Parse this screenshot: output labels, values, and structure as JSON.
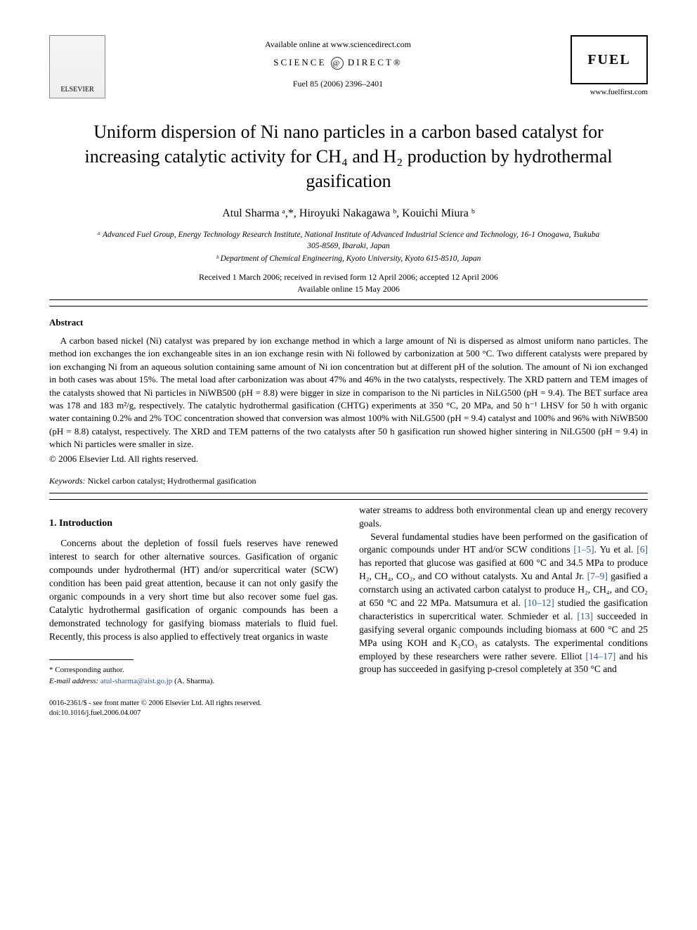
{
  "header": {
    "available_text": "Available online at www.sciencedirect.com",
    "sciencedirect_text_left": "SCIENCE",
    "sciencedirect_text_right": "DIRECT®",
    "journal_ref": "Fuel 85 (2006) 2396–2401",
    "journal_url": "www.fuelfirst.com",
    "elsevier_label": "ELSEVIER",
    "fuel_logo_text": "FUEL"
  },
  "title": "Uniform dispersion of Ni nano particles in a carbon based catalyst for increasing catalytic activity for CH₄ and H₂ production by hydrothermal gasification",
  "authors_line": "Atul Sharma ᵃ,*, Hiroyuki Nakagawa ᵇ, Kouichi Miura ᵇ",
  "affiliations": {
    "a": "ᵃ Advanced Fuel Group, Energy Technology Research Institute, National Institute of Advanced Industrial Science and Technology, 16-1 Onogawa, Tsukuba 305-8569, Ibaraki, Japan",
    "b": "ᵇ Department of Chemical Engineering, Kyoto University, Kyoto 615-8510, Japan"
  },
  "dates": {
    "line1": "Received 1 March 2006; received in revised form 12 April 2006; accepted 12 April 2006",
    "line2": "Available online 15 May 2006"
  },
  "abstract": {
    "heading": "Abstract",
    "body": "A carbon based nickel (Ni) catalyst was prepared by ion exchange method in which a large amount of Ni is dispersed as almost uniform nano particles. The method ion exchanges the ion exchangeable sites in an ion exchange resin with Ni followed by carbonization at 500 °C. Two different catalysts were prepared by ion exchanging Ni from an aqueous solution containing same amount of Ni ion concentration but at different pH of the solution. The amount of Ni ion exchanged in both cases was about 15%. The metal load after carbonization was about 47% and 46% in the two catalysts, respectively. The XRD pattern and TEM images of the catalysts showed that Ni particles in NiWB500 (pH = 8.8) were bigger in size in comparison to the Ni particles in NiLG500 (pH = 9.4). The BET surface area was 178 and 183 m²/g, respectively. The catalytic hydrothermal gasification (CHTG) experiments at 350 °C, 20 MPa, and 50 h⁻¹ LHSV for 50 h with organic water containing 0.2% and 2% TOC concentration showed that conversion was almost 100% with NiLG500 (pH = 9.4) catalyst and 100% and 96% with NiWB500 (pH = 8.8) catalyst, respectively. The XRD and TEM patterns of the two catalysts after 50 h gasification run showed higher sintering in NiLG500 (pH = 9.4) in which Ni particles were smaller in size.",
    "copyright": "© 2006 Elsevier Ltd. All rights reserved."
  },
  "keywords": {
    "label": "Keywords:",
    "text": "Nickel carbon catalyst; Hydrothermal gasification"
  },
  "section1": {
    "heading": "1. Introduction",
    "left_p1": "Concerns about the depletion of fossil fuels reserves have renewed interest to search for other alternative sources. Gasification of organic compounds under hydrothermal (HT) and/or supercritical water (SCW) condition has been paid great attention, because it can not only gasify the organic compounds in a very short time but also recover some fuel gas. Catalytic hydrothermal gasification of organic compounds has been a demonstrated technology for gasifying biomass materials to fluid fuel. Recently, this process is also applied to effectively treat organics in waste",
    "right_p1_a": "water streams to address both environmental clean up and energy recovery goals.",
    "right_p2_a": "Several fundamental studies have been performed on the gasification of organic compounds under HT and/or SCW conditions ",
    "right_ref1": "[1–5]",
    "right_p2_b": ". Yu et al. ",
    "right_ref2": "[6]",
    "right_p2_c": " has reported that glucose was gasified at 600 °C and 34.5 MPa to produce H₂, CH₄, CO₂, and CO without catalysts. Xu and Antal Jr. ",
    "right_ref3": "[7–9]",
    "right_p2_d": " gasified a cornstarch using an activated carbon catalyst to produce H₂, CH₄, and CO₂ at 650 °C and 22 MPa. Matsumura et al. ",
    "right_ref4": "[10–12]",
    "right_p2_e": " studied the gasification characteristics in supercritical water. Schmieder et al. ",
    "right_ref5": "[13]",
    "right_p2_f": " succeeded in gasifying several organic compounds including biomass at 600 °C and 25 MPa using KOH and K₂CO₃ as catalysts. The experimental conditions employed by these researchers were rather severe. Elliot ",
    "right_ref6": "[14–17]",
    "right_p2_g": " and his group has succeeded in gasifying p-cresol completely at 350 °C and"
  },
  "footnote": {
    "corr": "* Corresponding author.",
    "email_label": "E-mail address:",
    "email_value": "atul-sharma@aist.go.jp",
    "email_name": "(A. Sharma)."
  },
  "bottom": {
    "issn": "0016-2361/$ - see front matter © 2006 Elsevier Ltd. All rights reserved.",
    "doi": "doi:10.1016/j.fuel.2006.04.007"
  },
  "colors": {
    "link": "#2a58b0",
    "text": "#000000",
    "bg": "#ffffff"
  }
}
